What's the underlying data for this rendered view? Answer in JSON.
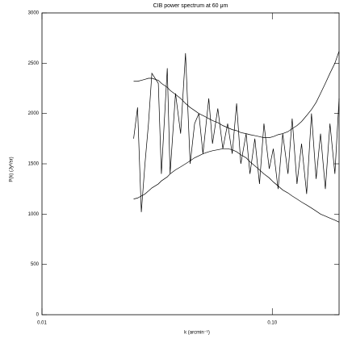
{
  "chart_data": {
    "type": "line",
    "title": "CIB power spectrum at 60 μm",
    "x_label": "k (arcmin⁻¹)",
    "y_label": "P(k) (Jy²/sr)",
    "log_x": true,
    "xlim": [
      0.01,
      0.195
    ],
    "xticks": [
      0.01,
      {
        "value": 0.1,
        "label": "0.10"
      }
    ],
    "ylim": [
      0,
      3000
    ],
    "yticks": [
      0,
      500,
      1000,
      1500,
      2000,
      2500,
      3000
    ],
    "x": [
      0.025,
      0.026,
      0.027,
      0.028,
      0.029,
      0.03,
      0.032,
      0.033,
      0.035,
      0.036,
      0.038,
      0.04,
      0.042,
      0.044,
      0.046,
      0.048,
      0.05,
      0.053,
      0.055,
      0.058,
      0.061,
      0.064,
      0.067,
      0.07,
      0.073,
      0.077,
      0.08,
      0.084,
      0.088,
      0.092,
      0.097,
      0.101,
      0.106,
      0.111,
      0.117,
      0.122,
      0.128,
      0.134,
      0.141,
      0.148,
      0.155,
      0.162,
      0.17,
      0.178,
      0.187,
      0.195
    ],
    "series": [
      {
        "color": "#000000",
        "values": [
          1750,
          2060,
          1020,
          1500,
          1900,
          2400,
          2300,
          1400,
          2450,
          1400,
          2200,
          1800,
          2600,
          1500,
          1900,
          2000,
          1600,
          2150,
          1700,
          2050,
          1650,
          1900,
          1600,
          2100,
          1500,
          1800,
          1400,
          1750,
          1300,
          1900,
          1450,
          1650,
          1250,
          1800,
          1400,
          1950,
          1300,
          1700,
          1200,
          2000,
          1350,
          1800,
          1250,
          1900,
          1400,
          2150
        ]
      },
      {
        "color": "#000000",
        "values": [
          2320,
          2320,
          2330,
          2340,
          2350,
          2350,
          2330,
          2300,
          2260,
          2230,
          2190,
          2150,
          2100,
          2060,
          2030,
          2000,
          1980,
          1950,
          1930,
          1910,
          1880,
          1860,
          1840,
          1830,
          1810,
          1800,
          1790,
          1780,
          1770,
          1760,
          1760,
          1770,
          1790,
          1800,
          1820,
          1850,
          1880,
          1920,
          1980,
          2040,
          2110,
          2200,
          2300,
          2400,
          2500,
          2620
        ]
      },
      {
        "color": "#000000",
        "values": [
          1150,
          1160,
          1180,
          1200,
          1230,
          1260,
          1300,
          1330,
          1370,
          1400,
          1440,
          1470,
          1500,
          1530,
          1560,
          1580,
          1600,
          1620,
          1630,
          1640,
          1650,
          1650,
          1640,
          1620,
          1590,
          1560,
          1520,
          1480,
          1440,
          1400,
          1360,
          1320,
          1280,
          1240,
          1210,
          1180,
          1150,
          1120,
          1090,
          1060,
          1030,
          1000,
          980,
          960,
          940,
          920
        ]
      }
    ]
  }
}
